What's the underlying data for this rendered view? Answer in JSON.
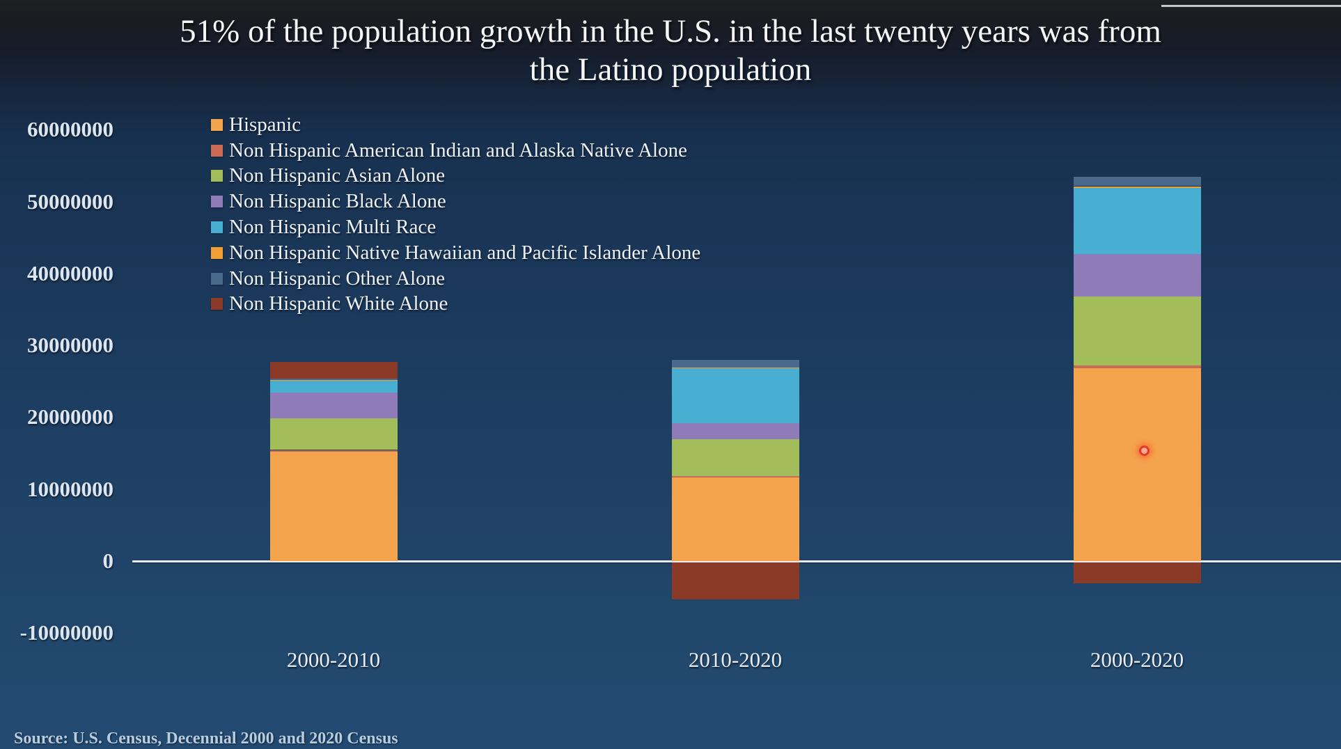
{
  "title": {
    "line1": "51% of the population growth in the U.S. in the last twenty years was from",
    "line2": "the Latino population"
  },
  "source": {
    "text": "Source: U.S. Census, Decennial 2000 and 2020 Census"
  },
  "chart_data": {
    "type": "bar",
    "stacked": true,
    "title": "51% of the population growth in the U.S. in the last twenty years was from the Latino population",
    "xlabel": "",
    "ylabel": "",
    "categories": [
      "2000-2010",
      "2010-2020",
      "2000-2020"
    ],
    "series": [
      {
        "name": "Hispanic",
        "color": "#f4a44c",
        "values": [
          15200000,
          11600000,
          26800000
        ]
      },
      {
        "name": "Non Hispanic American Indian and Alaska Native Alone",
        "color": "#c96a54",
        "values": [
          200000,
          200000,
          400000
        ]
      },
      {
        "name": "Non Hispanic Asian Alone",
        "color": "#a2bd59",
        "values": [
          4400000,
          5200000,
          9600000
        ]
      },
      {
        "name": "Non Hispanic Black Alone",
        "color": "#8f7bb8",
        "values": [
          3700000,
          2200000,
          5900000
        ]
      },
      {
        "name": "Non Hispanic Multi Race",
        "color": "#49afd2",
        "values": [
          1600000,
          7600000,
          9200000
        ]
      },
      {
        "name": "Non Hispanic Native Hawaiian and Pacific Islander Alone",
        "color": "#f09f35",
        "values": [
          100000,
          100000,
          200000
        ]
      },
      {
        "name": "Non Hispanic Other Alone",
        "color": "#4a6a8c",
        "values": [
          200000,
          1100000,
          1300000
        ]
      },
      {
        "name": "Non Hispanic White Alone",
        "color": "#8a3a26",
        "values": [
          2300000,
          -5100000,
          -2900000
        ]
      }
    ],
    "yticks": [
      {
        "value": 60000000,
        "label": "60000000"
      },
      {
        "value": 50000000,
        "label": "50000000"
      },
      {
        "value": 40000000,
        "label": "40000000"
      },
      {
        "value": 30000000,
        "label": "30000000"
      },
      {
        "value": 20000000,
        "label": "20000000"
      },
      {
        "value": 10000000,
        "label": "10000000"
      },
      {
        "value": 0,
        "label": "0"
      },
      {
        "value": -10000000,
        "label": "-10000000"
      }
    ],
    "ylim": [
      -10000000,
      60000000
    ],
    "grid": false,
    "legend_position": "upper-left"
  },
  "colors": {
    "background_top": "#1e1f21",
    "background_mid": "#1a3657",
    "background_bottom": "#234b72",
    "axis_line": "#e9eef3",
    "text": "#eef1f6"
  },
  "pointer": {
    "shape": "laser-dot",
    "color": "#e23b28"
  },
  "decorations": {
    "top_right_line_color": "#d8d8d8"
  }
}
